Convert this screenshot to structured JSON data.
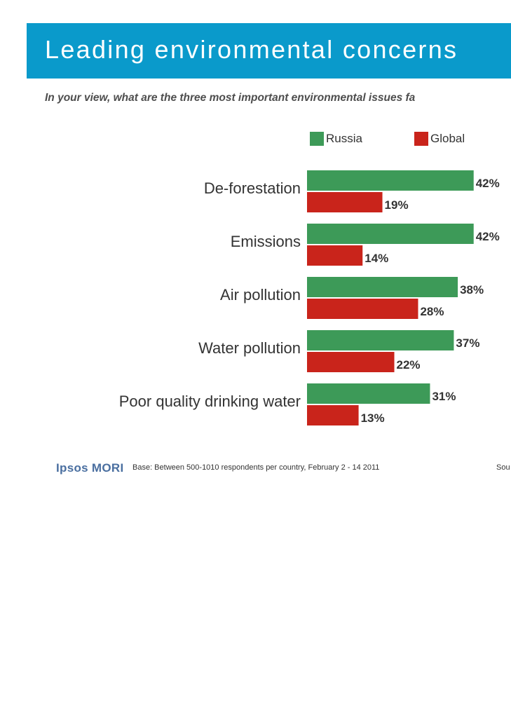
{
  "header": {
    "title": "Leading environmental concerns",
    "subtitle": "In your view, what are the three most important environmental issues fa"
  },
  "chart_data": {
    "type": "bar",
    "orientation": "horizontal",
    "title": "",
    "xlabel": "",
    "ylabel": "",
    "categories": [
      "De-forestation",
      "Emissions",
      "Air pollution",
      "Water pollution",
      "Poor quality drinking water"
    ],
    "series": [
      {
        "name": "Russia",
        "values": [
          42,
          42,
          38,
          37,
          31
        ],
        "color": "#3d9a58"
      },
      {
        "name": "Global",
        "values": [
          19,
          14,
          28,
          22,
          13
        ],
        "color": "#c9241b"
      }
    ],
    "value_suffix": "%",
    "xlim": [
      0,
      45
    ],
    "grid": false,
    "legend_placement": "top"
  },
  "footer": {
    "logo": "Ipsos MORI",
    "base": "Base: Between 500-1010 respondents per country, February 2 - 14 2011",
    "source": "Sou"
  }
}
